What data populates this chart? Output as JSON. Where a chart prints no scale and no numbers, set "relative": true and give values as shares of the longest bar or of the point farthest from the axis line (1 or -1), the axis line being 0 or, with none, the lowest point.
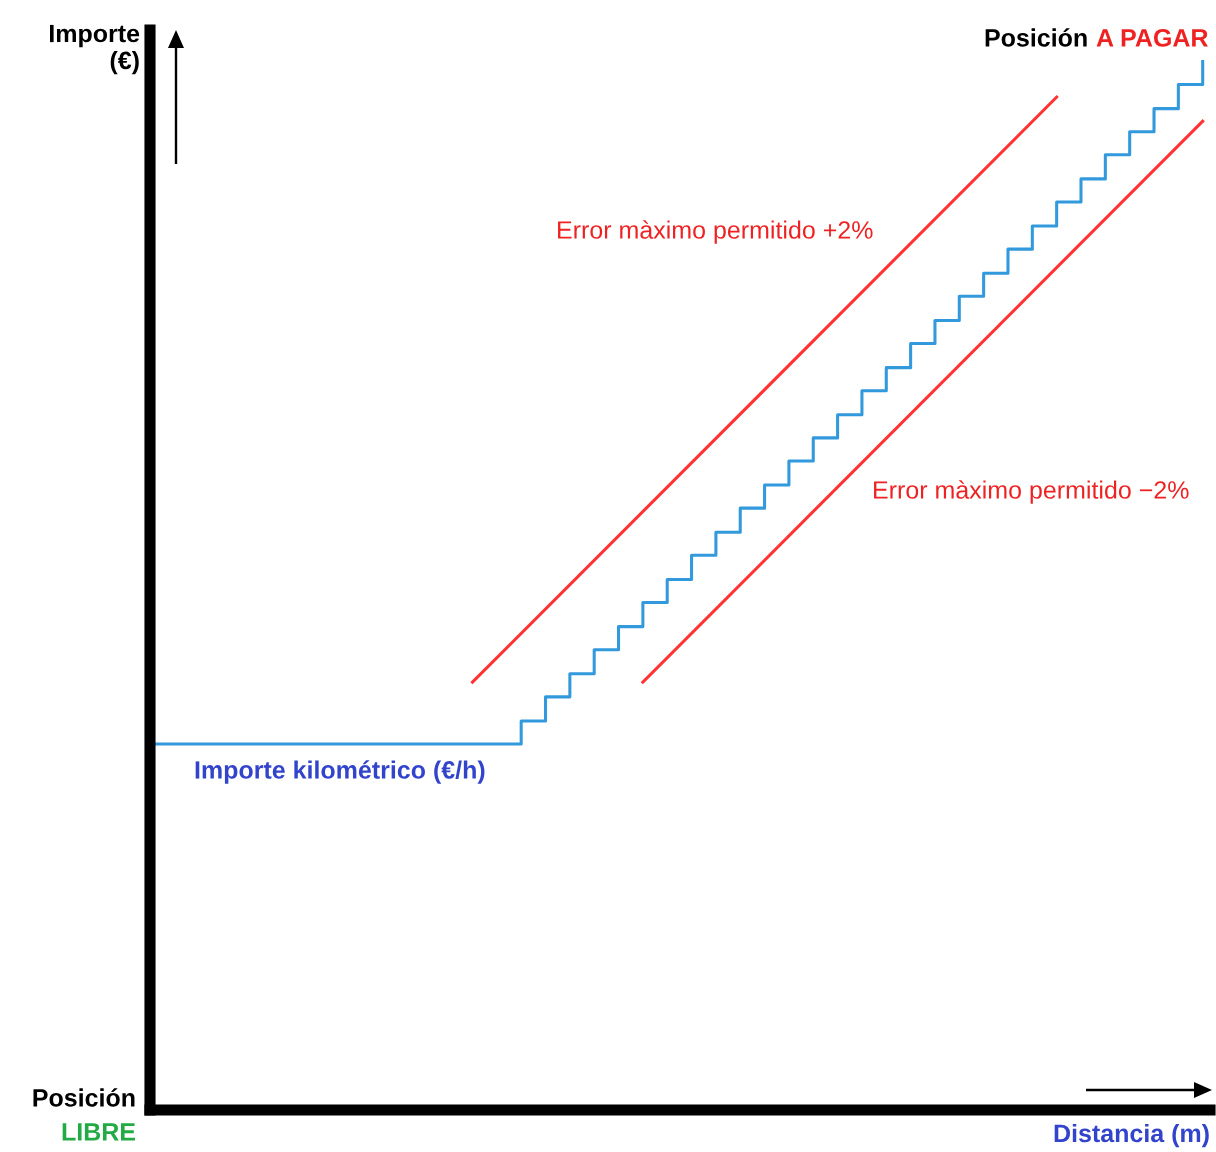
{
  "chart_data": {
    "type": "line",
    "relative": true,
    "xlabel": "Distancia (m)",
    "ylabel": "Importe\n(€)",
    "categories": [
      null,
      null,
      null,
      null,
      null,
      null,
      null,
      null,
      null,
      null,
      null,
      null,
      null,
      null,
      null,
      null,
      null,
      null,
      null,
      null,
      null,
      null,
      null,
      null,
      null,
      null,
      null,
      null,
      null,
      null,
      null,
      null,
      null,
      null,
      null,
      null,
      null,
      null,
      null,
      null,
      null,
      null,
      null,
      null
    ],
    "series": [
      {
        "type": "step",
        "color": "#3399dd",
        "values": [
          0.349,
          0.349,
          0.349,
          0.349,
          0.349,
          0.349,
          0.349,
          0.349,
          0.349,
          0.349,
          0.349,
          0.349,
          0.349,
          0.349,
          0.349,
          0.371,
          0.394,
          0.416,
          0.439,
          0.461,
          0.484,
          0.506,
          0.529,
          0.551,
          0.574,
          0.596,
          0.619,
          0.641,
          0.663,
          0.686,
          0.708,
          0.731,
          0.753,
          0.776,
          0.798,
          0.821,
          0.843,
          0.866,
          0.888,
          0.911,
          0.933,
          0.955,
          0.978,
          1.0
        ]
      },
      {
        "color": "#ff3333",
        "values": [
          null,
          null,
          null,
          null,
          null,
          null,
          null,
          null,
          null,
          null,
          null,
          null,
          null,
          0.408,
          null,
          null,
          null,
          null,
          null,
          null,
          null,
          null,
          null,
          null,
          null,
          null,
          null,
          null,
          null,
          null,
          null,
          null,
          null,
          null,
          null,
          null,
          null,
          0.966,
          null,
          null,
          null,
          null,
          null,
          null
        ]
      },
      {
        "color": "#ff3333",
        "values": [
          null,
          null,
          null,
          null,
          null,
          null,
          null,
          null,
          null,
          null,
          null,
          null,
          null,
          null,
          null,
          null,
          null,
          null,
          null,
          null,
          0.408,
          null,
          null,
          null,
          null,
          null,
          null,
          null,
          null,
          null,
          null,
          null,
          null,
          null,
          null,
          null,
          null,
          null,
          null,
          null,
          null,
          null,
          null,
          0.943
        ]
      }
    ],
    "annotations": [
      "Error màximo permitido +2%",
      "Error màximo permitido −2%",
      "Importe kilométrico (€/h)",
      "Posición",
      "LIBRE",
      "Posición",
      "A PAGAR"
    ]
  }
}
